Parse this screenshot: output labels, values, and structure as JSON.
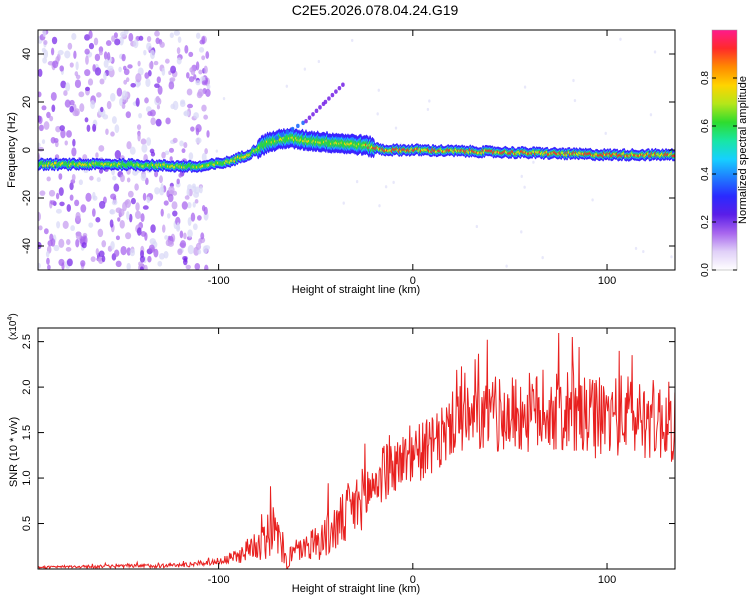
{
  "title": "C2E5.2026.078.04.24.G19",
  "colors": {
    "snr_line": "#e8201f",
    "background": "#ffffff",
    "axis": "#000000",
    "colormap": [
      "#d9d9f7",
      "#c79ff0",
      "#a866ee",
      "#7b2ce8",
      "#3a22ff",
      "#1f6cff",
      "#16c8ff",
      "#18e6a4",
      "#2edc2e",
      "#c8e61a",
      "#ffd400",
      "#ff8a00",
      "#ff2a2a",
      "#ff1a8c"
    ]
  },
  "chart_data": [
    {
      "type": "heatmap",
      "name": "spectrogram",
      "xlabel": "Height of straight line (km)",
      "ylabel": "Frequency (Hz)",
      "xlim": [
        -193,
        135
      ],
      "ylim": [
        -50,
        50
      ],
      "xticks": [
        -100,
        0,
        100
      ],
      "xtick_labels": [
        "-100",
        "0",
        "100"
      ],
      "yticks": [
        -40,
        -20,
        0,
        20,
        40
      ],
      "ytick_labels": [
        "-40",
        "-20",
        "0",
        "20",
        "40"
      ],
      "colorbar": {
        "label": "Normalized spectral amplitude",
        "range": [
          0,
          1
        ],
        "ticks": [
          0.0,
          0.2,
          0.4,
          0.6,
          0.8
        ],
        "tick_labels": [
          "0.0",
          "0.2",
          "0.4",
          "0.6",
          "0.8"
        ]
      },
      "ridge": {
        "description_points": [
          [
            -193,
            -6
          ],
          [
            -150,
            -6
          ],
          [
            -110,
            -7
          ],
          [
            -95,
            -5
          ],
          [
            -85,
            -2
          ],
          [
            -75,
            3
          ],
          [
            -65,
            5
          ],
          [
            -55,
            4
          ],
          [
            -40,
            3
          ],
          [
            -25,
            2
          ],
          [
            -15,
            0
          ],
          [
            0,
            0
          ],
          [
            50,
            -1
          ],
          [
            100,
            -2
          ],
          [
            135,
            -2
          ]
        ],
        "branch": [
          [
            -70,
            5
          ],
          [
            -55,
            12
          ],
          [
            -45,
            20
          ],
          [
            -35,
            28
          ]
        ],
        "noisy_region_x": [
          -193,
          -105
        ]
      }
    },
    {
      "type": "line",
      "name": "snr",
      "xlabel": "Height of straight line (km)",
      "ylabel": "SNR (10 * v/v)",
      "exponent_label": "(x10",
      "exponent_sup": "4",
      "exponent_close": ")",
      "xlim": [
        -193,
        135
      ],
      "ylim": [
        0,
        2.65
      ],
      "xticks": [
        -100,
        0,
        100
      ],
      "xtick_labels": [
        "-100",
        "0",
        "100"
      ],
      "yticks": [
        0.5,
        1.0,
        1.5,
        2.0,
        2.5
      ],
      "ytick_labels": [
        "0.5",
        "1.0",
        "1.5",
        "2.0",
        "2.5"
      ],
      "series": [
        {
          "name": "SNR",
          "envelope_points": [
            [
              -193,
              0.02
            ],
            [
              -150,
              0.03
            ],
            [
              -120,
              0.04
            ],
            [
              -100,
              0.08
            ],
            [
              -90,
              0.14
            ],
            [
              -80,
              0.3
            ],
            [
              -72,
              0.45
            ],
            [
              -65,
              0.12
            ],
            [
              -55,
              0.25
            ],
            [
              -45,
              0.35
            ],
            [
              -35,
              0.55
            ],
            [
              -25,
              0.8
            ],
            [
              -15,
              1.05
            ],
            [
              -5,
              1.2
            ],
            [
              5,
              1.3
            ],
            [
              15,
              1.4
            ],
            [
              20,
              1.6
            ],
            [
              35,
              1.65
            ],
            [
              50,
              1.7
            ],
            [
              70,
              1.72
            ],
            [
              90,
              1.65
            ],
            [
              110,
              1.7
            ],
            [
              135,
              1.6
            ]
          ],
          "noise_amplitude": [
            [
              -193,
              0.01
            ],
            [
              -100,
              0.03
            ],
            [
              -85,
              0.12
            ],
            [
              -75,
              0.3
            ],
            [
              -60,
              0.1
            ],
            [
              -45,
              0.25
            ],
            [
              -30,
              0.35
            ],
            [
              -10,
              0.3
            ],
            [
              20,
              0.35
            ],
            [
              60,
              0.45
            ],
            [
              135,
              0.45
            ]
          ]
        }
      ]
    }
  ]
}
